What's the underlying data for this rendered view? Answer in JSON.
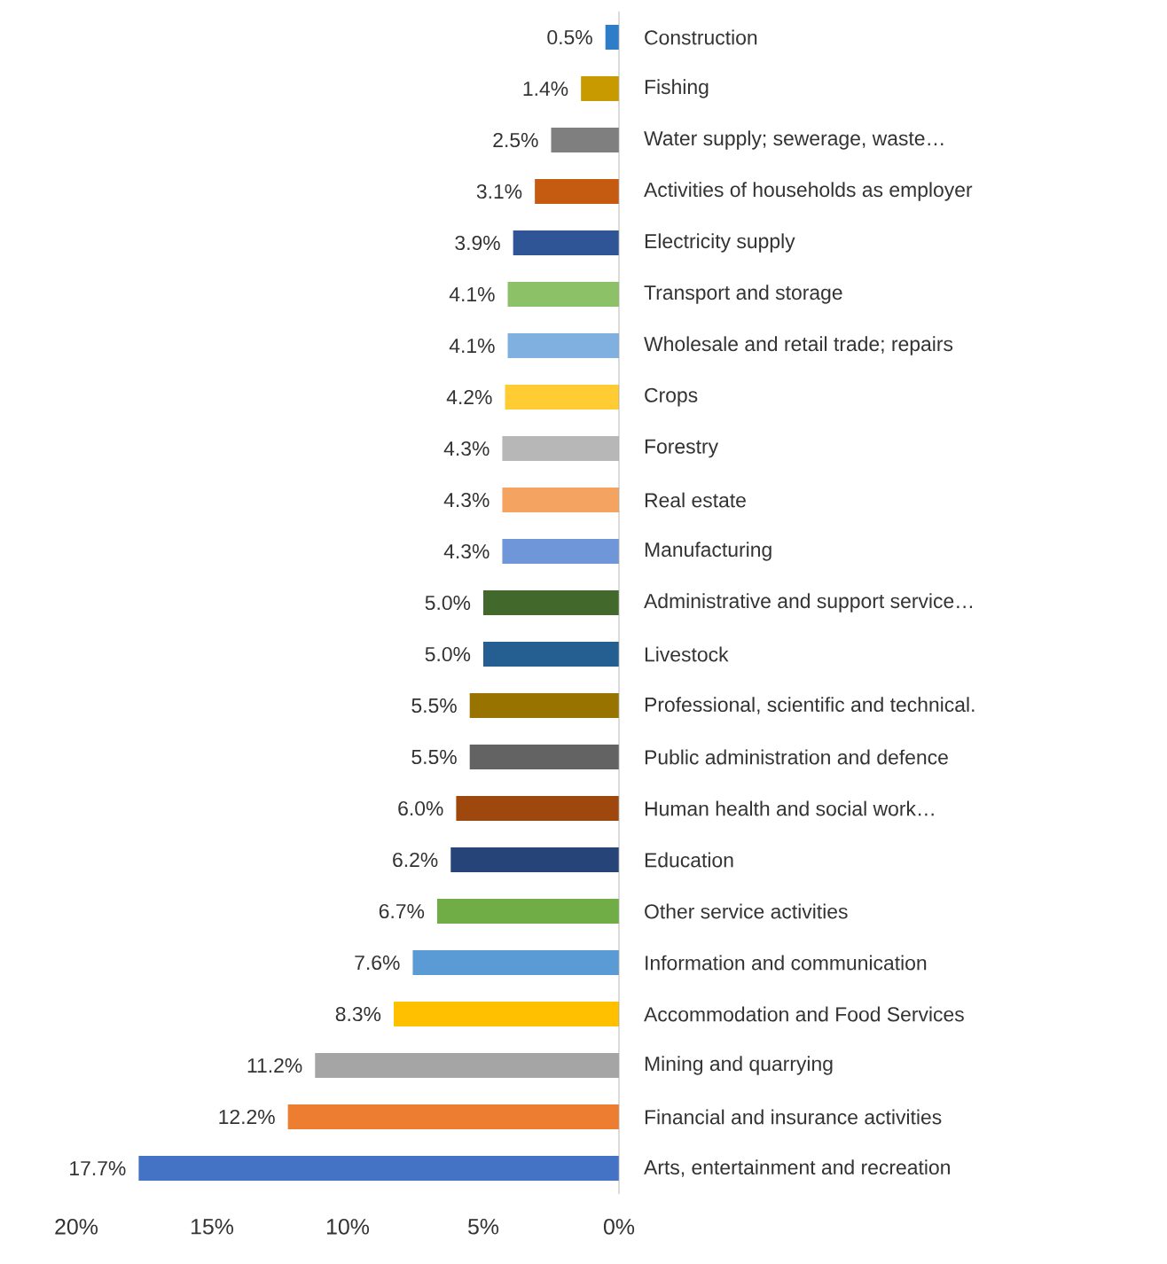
{
  "chart_data": {
    "type": "bar",
    "orientation": "horizontal",
    "categories": [
      "Construction",
      "Fishing",
      "Water supply; sewerage, waste…",
      "Activities of households as employer",
      "Electricity supply",
      "Transport and storage",
      "Wholesale and retail trade; repairs",
      "Crops",
      "Forestry",
      "Real estate",
      "Manufacturing",
      "Administrative and support service…",
      "Livestock",
      "Professional, scientific and technical.",
      "Public administration and defence",
      "Human health and social work…",
      "Education",
      "Other service activities",
      "Information and communication",
      "Accommodation and Food Services",
      "Mining and quarrying",
      "Financial and insurance activities",
      "Arts, entertainment and recreation"
    ],
    "values": [
      0.5,
      1.4,
      2.5,
      3.1,
      3.9,
      4.1,
      4.1,
      4.2,
      4.3,
      4.3,
      4.3,
      5.0,
      5.0,
      5.5,
      5.5,
      6.0,
      6.2,
      6.7,
      7.6,
      8.3,
      11.2,
      12.2,
      17.7
    ],
    "value_labels": [
      "0.5%",
      "1.4%",
      "2.5%",
      "3.1%",
      "3.9%",
      "4.1%",
      "4.1%",
      "4.2%",
      "4.3%",
      "4.3%",
      "4.3%",
      "5.0%",
      "5.0%",
      "5.5%",
      "5.5%",
      "6.0%",
      "6.2%",
      "6.7%",
      "7.6%",
      "8.3%",
      "11.2%",
      "12.2%",
      "17.7%"
    ],
    "colors": [
      "#2f7dc9",
      "#c89a00",
      "#7f7f7f",
      "#c55a11",
      "#2f5597",
      "#8cc168",
      "#7fb0e0",
      "#ffcc33",
      "#b7b7b7",
      "#f4a460",
      "#6f96d8",
      "#43682b",
      "#255e91",
      "#997300",
      "#636363",
      "#9e480e",
      "#264478",
      "#70ad47",
      "#5b9bd5",
      "#ffc000",
      "#a5a5a5",
      "#ed7d31",
      "#4472c4"
    ],
    "xlim": [
      20,
      0
    ],
    "xticks": [
      {
        "value": 20,
        "label": "20%"
      },
      {
        "value": 15,
        "label": "15%"
      },
      {
        "value": 10,
        "label": "10%"
      },
      {
        "value": 5,
        "label": "5%"
      },
      {
        "value": 0,
        "label": "0%"
      }
    ],
    "grid": false
  }
}
